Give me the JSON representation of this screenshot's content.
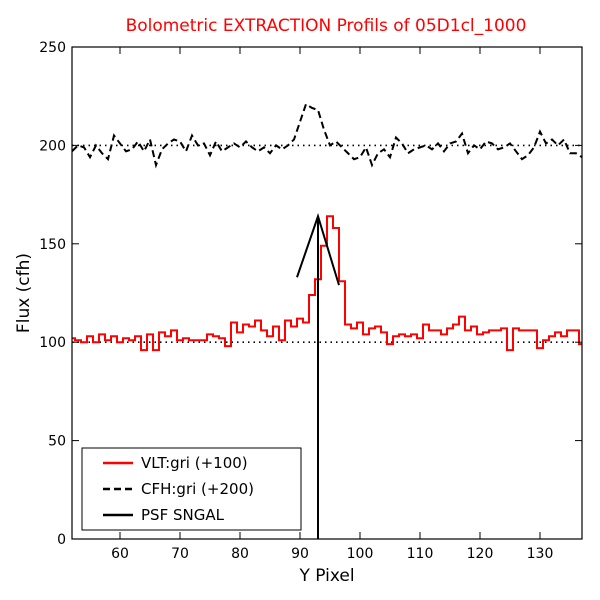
{
  "chart_data": {
    "type": "line",
    "title": "Bolometric EXTRACTION Profils of 05D1cl_1000",
    "title_color": "#ff0000",
    "xlabel": "Y Pixel",
    "ylabel": "Flux (cfh)",
    "xlim": [
      52,
      137
    ],
    "ylim": [
      0,
      250
    ],
    "x_ticks": [
      60,
      70,
      80,
      90,
      100,
      110,
      120,
      130
    ],
    "y_ticks": [
      0,
      50,
      100,
      150,
      200,
      250
    ],
    "grid": false,
    "legend_position": "lower-left",
    "reference_lines": [
      {
        "y": 100,
        "style": "dotted",
        "color": "#000000"
      },
      {
        "y": 200,
        "style": "dotted",
        "color": "#000000"
      }
    ],
    "series": [
      {
        "name": "VLT:gri (+100)",
        "color": "#ff0000",
        "style": "steps",
        "x": [
          52,
          53,
          54,
          55,
          56,
          57,
          58,
          59,
          60,
          61,
          62,
          63,
          64,
          65,
          66,
          67,
          68,
          69,
          70,
          71,
          72,
          73,
          74,
          75,
          76,
          77,
          78,
          79,
          80,
          81,
          82,
          83,
          84,
          85,
          86,
          87,
          88,
          89,
          90,
          91,
          92,
          93,
          94,
          95,
          96,
          97,
          98,
          99,
          100,
          101,
          102,
          103,
          104,
          105,
          106,
          107,
          108,
          109,
          110,
          111,
          112,
          113,
          114,
          115,
          116,
          117,
          118,
          119,
          120,
          121,
          122,
          123,
          124,
          125,
          126,
          127,
          128,
          129,
          130,
          131,
          132,
          133,
          134,
          135,
          136,
          137
        ],
        "values": [
          102,
          101,
          100,
          103,
          100,
          104,
          101,
          103,
          100,
          102,
          101,
          103,
          96,
          104,
          96,
          105,
          103,
          106,
          101,
          102,
          101,
          101,
          101,
          104,
          103,
          102,
          98,
          110,
          105,
          109,
          108,
          111,
          106,
          103,
          108,
          101,
          111,
          108,
          112,
          110,
          124,
          132,
          149,
          164,
          158,
          131,
          109,
          107,
          110,
          104,
          107,
          108,
          105,
          99,
          103,
          104,
          103,
          104,
          102,
          109,
          106,
          106,
          104,
          107,
          109,
          113,
          106,
          108,
          104,
          105,
          106,
          106,
          107,
          96,
          107,
          106,
          106,
          106,
          97,
          101,
          103,
          105,
          103,
          106,
          106,
          99
        ]
      },
      {
        "name": "CFH:gri (+200)",
        "color": "#000000",
        "style": "dashed",
        "x": [
          52,
          53,
          54,
          55,
          56,
          57,
          58,
          59,
          60,
          61,
          62,
          63,
          64,
          65,
          66,
          67,
          68,
          69,
          70,
          71,
          72,
          73,
          74,
          75,
          76,
          77,
          78,
          79,
          80,
          81,
          82,
          83,
          84,
          85,
          86,
          87,
          88,
          89,
          90,
          91,
          92,
          93,
          94,
          95,
          96,
          97,
          98,
          99,
          100,
          101,
          102,
          103,
          104,
          105,
          106,
          107,
          108,
          109,
          110,
          111,
          112,
          113,
          114,
          115,
          116,
          117,
          118,
          119,
          120,
          121,
          122,
          123,
          124,
          125,
          126,
          127,
          128,
          129,
          130,
          131,
          132,
          133,
          134,
          135,
          136,
          137
        ],
        "values": [
          197,
          200,
          199,
          194,
          200,
          196,
          193,
          205,
          201,
          197,
          198,
          202,
          197,
          203,
          190,
          198,
          201,
          203,
          202,
          197,
          205,
          200,
          201,
          195,
          202,
          197,
          199,
          201,
          199,
          202,
          199,
          197,
          199,
          196,
          200,
          198,
          200,
          203,
          212,
          221,
          219,
          218,
          208,
          200,
          202,
          199,
          196,
          193,
          194,
          199,
          190,
          196,
          198,
          194,
          204,
          201,
          196,
          198,
          199,
          200,
          198,
          201,
          197,
          201,
          202,
          206,
          196,
          200,
          198,
          202,
          201,
          198,
          199,
          201,
          197,
          193,
          195,
          199,
          207,
          201,
          203,
          200,
          203,
          196,
          196,
          194
        ]
      },
      {
        "name": "PSF SNGAL",
        "color": "#000000",
        "style": "solid",
        "x": [
          89.5,
          93,
          96.5
        ],
        "values": [
          133,
          164,
          129
        ],
        "stem_x": 93
      }
    ]
  }
}
